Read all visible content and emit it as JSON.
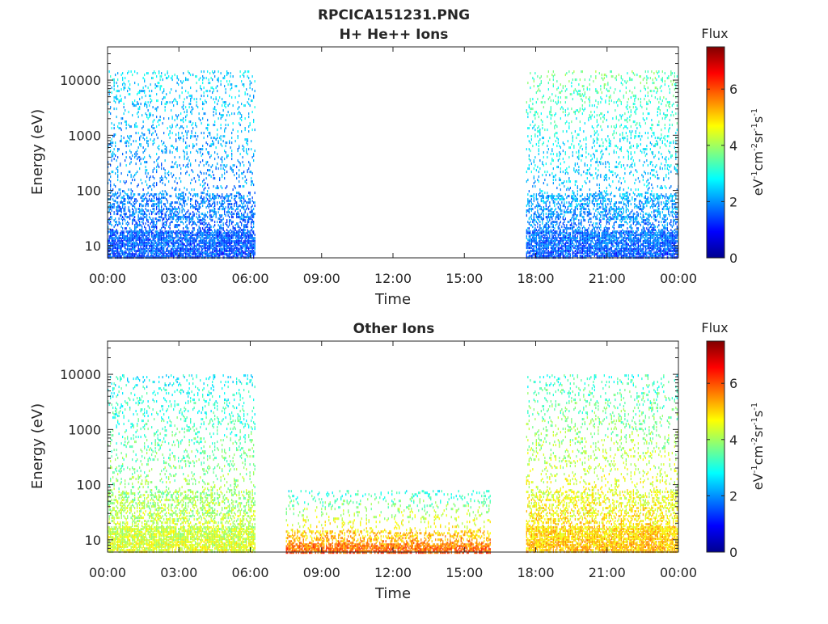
{
  "figure_title": "RPCICA151231.PNG",
  "colormap": [
    "#00008f",
    "#0000ff",
    "#0080ff",
    "#00ffff",
    "#80ff80",
    "#ffff00",
    "#ff8000",
    "#ff0000",
    "#800000"
  ],
  "chart_data": [
    {
      "type": "heatmap",
      "title": "H+ He++ Ions",
      "xlabel": "Time",
      "ylabel": "Energy (eV)",
      "x_tick_labels": [
        "00:00",
        "03:00",
        "06:00",
        "09:00",
        "12:00",
        "15:00",
        "18:00",
        "21:00",
        "00:00"
      ],
      "x_ticks_hours": [
        0,
        3,
        6,
        9,
        12,
        15,
        18,
        21,
        24
      ],
      "xlim_hours": [
        0,
        24
      ],
      "y_scale": "log",
      "y_tick_labels": [
        "10",
        "100",
        "1000",
        "10000"
      ],
      "y_ticks": [
        10,
        100,
        1000,
        10000
      ],
      "ylim": [
        6,
        40000
      ],
      "colorbar": {
        "title": "Flux",
        "ticks": [
          0,
          2,
          4,
          6
        ],
        "clim": [
          0,
          7.5
        ]
      },
      "data_segments": [
        {
          "start_hour": 0.0,
          "end_hour": 6.2,
          "max_energy": 15000,
          "low_flux": 1.5,
          "high_flux": 2.6
        },
        {
          "start_hour": 17.6,
          "end_hour": 24.0,
          "max_energy": 15000,
          "low_flux": 1.5,
          "high_flux": 3.6
        }
      ]
    },
    {
      "type": "heatmap",
      "title": "Other Ions",
      "xlabel": "Time",
      "ylabel": "Energy (eV)",
      "x_tick_labels": [
        "00:00",
        "03:00",
        "06:00",
        "09:00",
        "12:00",
        "15:00",
        "18:00",
        "21:00",
        "00:00"
      ],
      "x_ticks_hours": [
        0,
        3,
        6,
        9,
        12,
        15,
        18,
        21,
        24
      ],
      "xlim_hours": [
        0,
        24
      ],
      "y_scale": "log",
      "y_tick_labels": [
        "10",
        "100",
        "1000",
        "10000"
      ],
      "y_ticks": [
        10,
        100,
        1000,
        10000
      ],
      "ylim": [
        6,
        40000
      ],
      "colorbar": {
        "title": "Flux",
        "ticks": [
          0,
          2,
          4,
          6
        ],
        "clim": [
          0,
          7.5
        ]
      },
      "data_segments": [
        {
          "start_hour": 0.0,
          "end_hour": 6.2,
          "max_energy": 10000,
          "low_flux": 4.5,
          "high_flux": 2.8
        },
        {
          "start_hour": 7.5,
          "end_hour": 16.1,
          "max_energy": 80,
          "low_flux": 6.0,
          "high_flux": 3.0
        },
        {
          "start_hour": 17.6,
          "end_hour": 24.0,
          "max_energy": 10000,
          "low_flux": 5.2,
          "high_flux": 3.2
        }
      ]
    }
  ]
}
